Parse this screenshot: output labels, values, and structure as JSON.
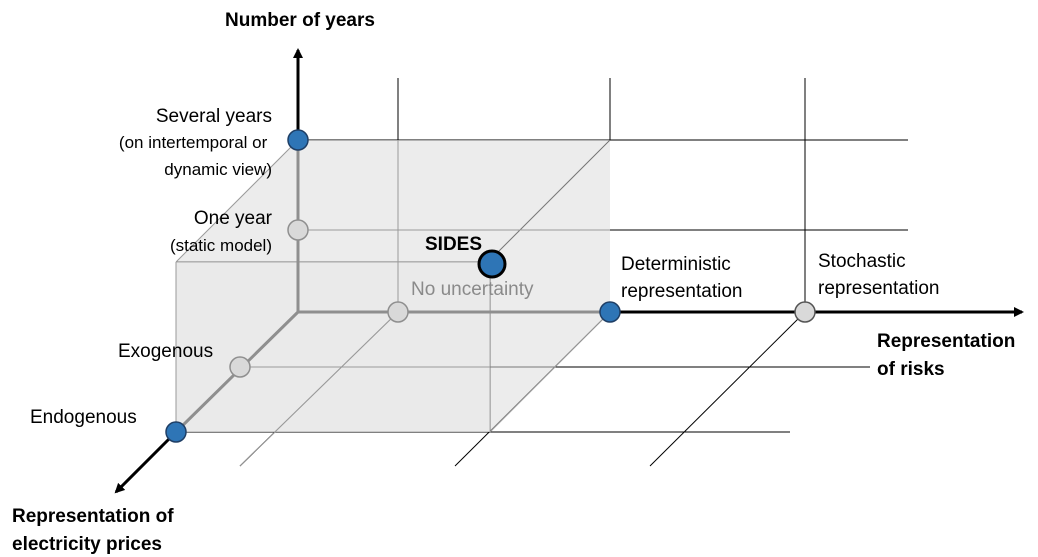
{
  "axes": {
    "years": {
      "title": "Number of years",
      "levels": [
        {
          "line1": "Several years",
          "line2": "(on intertemporal or",
          "line3": "dynamic view)"
        },
        {
          "line1": "One year",
          "line2": "(static model)"
        }
      ]
    },
    "risks": {
      "title_line1": "Representation",
      "title_line2": "of risks",
      "levels": [
        {
          "line1": "No uncertainty"
        },
        {
          "line1": "Deterministic",
          "line2": "representation"
        },
        {
          "line1": "Stochastic",
          "line2": "representation"
        }
      ]
    },
    "prices": {
      "title_line1": "Representation of",
      "title_line2": "electricity prices",
      "levels": [
        {
          "line1": "Exogenous"
        },
        {
          "line1": "Endogenous"
        }
      ]
    }
  },
  "highlight": {
    "label": "SIDES"
  },
  "colors": {
    "selected_point": "#2e75b6",
    "unselected_point": "#d9d9d9",
    "cube_fill": "#e7e7e7"
  }
}
